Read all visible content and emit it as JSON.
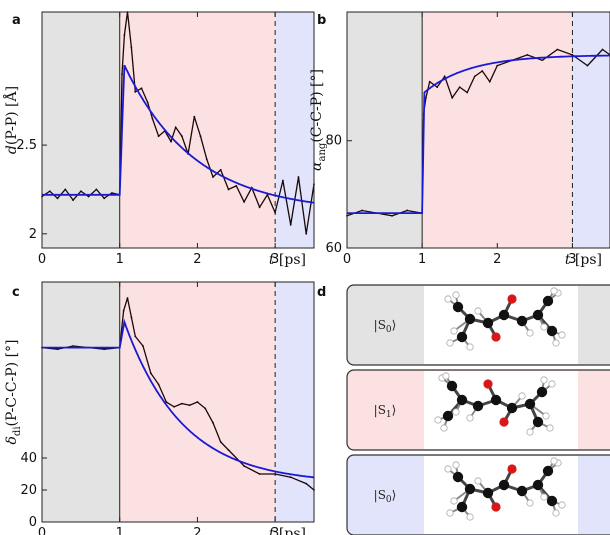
{
  "colors": {
    "ground": "#e3e3e3",
    "excited": "#fbe1e1",
    "relaxed": "#e2e4fb",
    "fit": "#1a1ad6",
    "data": "#1a0808",
    "carbon": "#111111",
    "oxygen": "#d81818",
    "hydrogen": "#ffffff"
  },
  "chart_data": [
    {
      "id": "a",
      "panel_label": "a",
      "type": "line",
      "ylabel_parts": [
        "d",
        "(P-P) [Å]"
      ],
      "xlabel_parts": [
        "t",
        " [ps]"
      ],
      "xlim": [
        0,
        3.5
      ],
      "ylim": [
        1.92,
        3.25
      ],
      "xticks": [
        "0",
        "1",
        "2",
        "3"
      ],
      "yticks": [
        "2",
        "2.5"
      ],
      "ytick_values": [
        2,
        2.5
      ],
      "baseline": 2.22,
      "fit_peak": 2.95,
      "fit_final": 2.12,
      "fit_tau": 0.9,
      "series": [
        {
          "key": "data",
          "x": [
            0,
            0.1,
            0.2,
            0.3,
            0.4,
            0.5,
            0.6,
            0.7,
            0.8,
            0.9,
            1.0,
            1.03,
            1.06,
            1.1,
            1.15,
            1.2,
            1.28,
            1.36,
            1.42,
            1.5,
            1.58,
            1.66,
            1.72,
            1.8,
            1.88,
            1.96,
            2.04,
            2.12,
            2.2,
            2.3,
            2.4,
            2.5,
            2.6,
            2.7,
            2.8,
            2.9,
            3.0,
            3.1,
            3.2,
            3.3,
            3.4,
            3.5
          ],
          "y": [
            2.21,
            2.24,
            2.2,
            2.25,
            2.19,
            2.24,
            2.21,
            2.25,
            2.2,
            2.23,
            2.22,
            2.9,
            3.12,
            3.25,
            3.05,
            2.8,
            2.82,
            2.74,
            2.65,
            2.55,
            2.58,
            2.52,
            2.6,
            2.55,
            2.45,
            2.66,
            2.55,
            2.42,
            2.32,
            2.36,
            2.25,
            2.27,
            2.18,
            2.26,
            2.15,
            2.22,
            2.12,
            2.3,
            2.05,
            2.32,
            2.0,
            2.28
          ]
        },
        {
          "key": "fit"
        }
      ]
    },
    {
      "id": "b",
      "panel_label": "b",
      "type": "line",
      "ylabel_parts": [
        "α",
        "ang",
        "(C-C-P) [°]"
      ],
      "xlabel_parts": [
        "t",
        " [ps]"
      ],
      "xlim": [
        0,
        3.5
      ],
      "ylim": [
        60,
        104
      ],
      "xticks": [
        "0",
        "1",
        "2",
        "3"
      ],
      "yticks": [
        "60",
        "80"
      ],
      "ytick_values": [
        60,
        80
      ],
      "baseline": 66.5,
      "fit_jump": 89.0,
      "fit_final": 96.0,
      "fit_tau": 0.6,
      "series": [
        {
          "key": "data",
          "x": [
            0,
            0.2,
            0.4,
            0.6,
            0.8,
            1.0,
            1.02,
            1.05,
            1.1,
            1.2,
            1.3,
            1.4,
            1.5,
            1.6,
            1.7,
            1.8,
            1.9,
            2.0,
            2.2,
            2.4,
            2.6,
            2.8,
            3.0,
            3.2,
            3.4,
            3.5
          ],
          "y": [
            66,
            67,
            66.5,
            66,
            67,
            66.5,
            85,
            88,
            91,
            90,
            92,
            88,
            90,
            89,
            92,
            93,
            91,
            94,
            95,
            96,
            95,
            97,
            96,
            94,
            97,
            96
          ]
        },
        {
          "key": "fit"
        }
      ]
    },
    {
      "id": "c",
      "panel_label": "c",
      "type": "line",
      "ylabel_parts": [
        "δ",
        "di",
        "(P-C-C-P) [°]"
      ],
      "xlabel_parts": [
        "t",
        " [ps]"
      ],
      "xlim": [
        0,
        3.5
      ],
      "ylim": [
        0,
        150
      ],
      "xticks": [
        "0",
        "1",
        "2",
        "3"
      ],
      "yticks": [
        "0",
        "20",
        "40"
      ],
      "ytick_values": [
        0,
        20,
        40
      ],
      "baseline": 109,
      "fit_peak": 125,
      "fit_final": 24,
      "fit_tau": 0.75,
      "series": [
        {
          "key": "data",
          "x": [
            0,
            0.2,
            0.4,
            0.6,
            0.8,
            1.0,
            1.05,
            1.1,
            1.15,
            1.2,
            1.3,
            1.4,
            1.5,
            1.6,
            1.7,
            1.8,
            1.9,
            2.0,
            2.1,
            2.2,
            2.3,
            2.4,
            2.6,
            2.8,
            3.0,
            3.2,
            3.4,
            3.5
          ],
          "y": [
            109,
            108,
            110,
            109,
            108,
            109,
            132,
            140,
            128,
            116,
            110,
            93,
            86,
            75,
            72,
            74,
            73,
            75,
            71,
            62,
            50,
            45,
            35,
            30,
            30,
            28,
            24,
            20
          ]
        },
        {
          "key": "fit"
        }
      ]
    }
  ],
  "panel_d": {
    "panel_label": "d",
    "rows": [
      {
        "bra": "|",
        "symbol": "S",
        "sub": "0",
        "ket": "⟩",
        "tone": "ground"
      },
      {
        "bra": "|",
        "symbol": "S",
        "sub": "1",
        "ket": "⟩",
        "tone": "excited"
      },
      {
        "bra": "|",
        "symbol": "S",
        "sub": "0",
        "ket": "⟩",
        "tone": "relaxed"
      }
    ]
  }
}
